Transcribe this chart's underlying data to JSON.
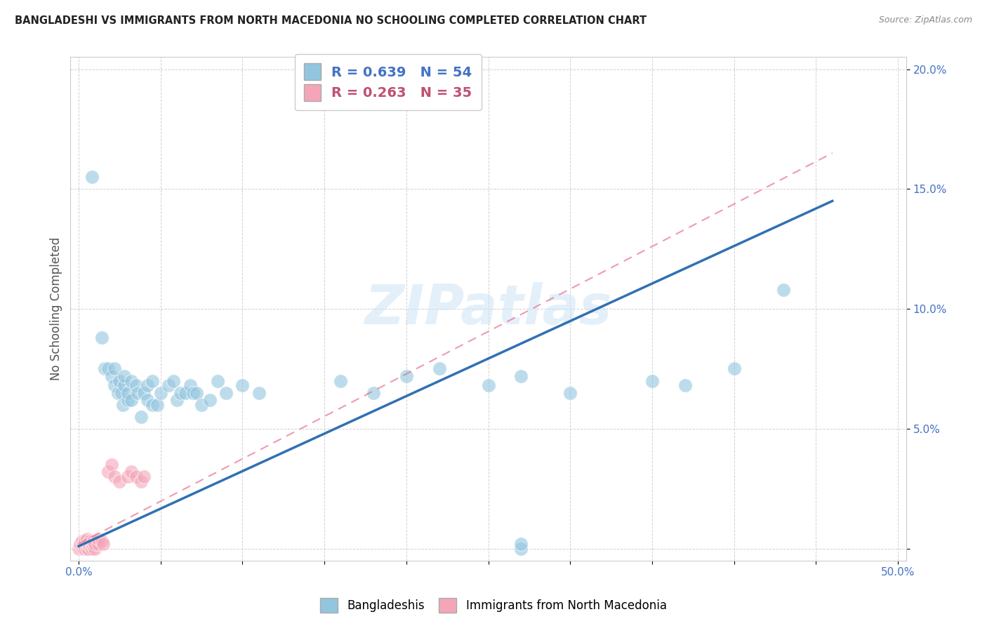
{
  "title": "BANGLADESHI VS IMMIGRANTS FROM NORTH MACEDONIA NO SCHOOLING COMPLETED CORRELATION CHART",
  "source": "Source: ZipAtlas.com",
  "ylabel": "No Schooling Completed",
  "xlim": [
    -0.005,
    0.505
  ],
  "ylim": [
    -0.005,
    0.205
  ],
  "xticks": [
    0.0,
    0.05,
    0.1,
    0.15,
    0.2,
    0.25,
    0.3,
    0.35,
    0.4,
    0.45,
    0.5
  ],
  "yticks": [
    0.0,
    0.05,
    0.1,
    0.15,
    0.2
  ],
  "blue_R": 0.639,
  "blue_N": 54,
  "pink_R": 0.263,
  "pink_N": 35,
  "blue_color": "#92c5de",
  "pink_color": "#f4a6b8",
  "blue_line_color": "#3070b3",
  "pink_line_color": "#e87090",
  "legend_label_blue": "Bangladeshis",
  "legend_label_pink": "Immigrants from North Macedonia",
  "blue_line_x0": 0.0,
  "blue_line_y0": 0.001,
  "blue_line_x1": 0.46,
  "blue_line_y1": 0.145,
  "pink_line_x0": 0.0,
  "pink_line_y0": 0.002,
  "pink_line_x1": 0.46,
  "pink_line_y1": 0.165,
  "blue_scatter": [
    [
      0.008,
      0.155
    ],
    [
      0.014,
      0.088
    ],
    [
      0.016,
      0.075
    ],
    [
      0.018,
      0.075
    ],
    [
      0.02,
      0.072
    ],
    [
      0.022,
      0.068
    ],
    [
      0.022,
      0.075
    ],
    [
      0.024,
      0.065
    ],
    [
      0.025,
      0.07
    ],
    [
      0.026,
      0.065
    ],
    [
      0.027,
      0.06
    ],
    [
      0.028,
      0.068
    ],
    [
      0.028,
      0.072
    ],
    [
      0.03,
      0.062
    ],
    [
      0.03,
      0.065
    ],
    [
      0.032,
      0.07
    ],
    [
      0.032,
      0.062
    ],
    [
      0.035,
      0.068
    ],
    [
      0.036,
      0.065
    ],
    [
      0.038,
      0.055
    ],
    [
      0.04,
      0.065
    ],
    [
      0.042,
      0.068
    ],
    [
      0.042,
      0.062
    ],
    [
      0.045,
      0.06
    ],
    [
      0.045,
      0.07
    ],
    [
      0.048,
      0.06
    ],
    [
      0.05,
      0.065
    ],
    [
      0.055,
      0.068
    ],
    [
      0.058,
      0.07
    ],
    [
      0.06,
      0.062
    ],
    [
      0.062,
      0.065
    ],
    [
      0.065,
      0.065
    ],
    [
      0.068,
      0.068
    ],
    [
      0.07,
      0.065
    ],
    [
      0.072,
      0.065
    ],
    [
      0.075,
      0.06
    ],
    [
      0.08,
      0.062
    ],
    [
      0.085,
      0.07
    ],
    [
      0.09,
      0.065
    ],
    [
      0.1,
      0.068
    ],
    [
      0.11,
      0.065
    ],
    [
      0.16,
      0.07
    ],
    [
      0.18,
      0.065
    ],
    [
      0.2,
      0.072
    ],
    [
      0.22,
      0.075
    ],
    [
      0.25,
      0.068
    ],
    [
      0.27,
      0.072
    ],
    [
      0.3,
      0.065
    ],
    [
      0.35,
      0.07
    ],
    [
      0.37,
      0.068
    ],
    [
      0.4,
      0.075
    ],
    [
      0.27,
      0.0
    ],
    [
      0.27,
      0.002
    ],
    [
      0.43,
      0.108
    ]
  ],
  "pink_scatter": [
    [
      0.0,
      0.0
    ],
    [
      0.001,
      0.0
    ],
    [
      0.001,
      0.002
    ],
    [
      0.002,
      0.0
    ],
    [
      0.002,
      0.003
    ],
    [
      0.003,
      0.0
    ],
    [
      0.003,
      0.002
    ],
    [
      0.004,
      0.0
    ],
    [
      0.004,
      0.003
    ],
    [
      0.005,
      0.0
    ],
    [
      0.005,
      0.002
    ],
    [
      0.005,
      0.004
    ],
    [
      0.006,
      0.0
    ],
    [
      0.006,
      0.002
    ],
    [
      0.007,
      0.001
    ],
    [
      0.007,
      0.003
    ],
    [
      0.008,
      0.0
    ],
    [
      0.008,
      0.002
    ],
    [
      0.009,
      0.001
    ],
    [
      0.009,
      0.003
    ],
    [
      0.01,
      0.0
    ],
    [
      0.01,
      0.002
    ],
    [
      0.012,
      0.002
    ],
    [
      0.012,
      0.004
    ],
    [
      0.014,
      0.003
    ],
    [
      0.015,
      0.002
    ],
    [
      0.018,
      0.032
    ],
    [
      0.02,
      0.035
    ],
    [
      0.022,
      0.03
    ],
    [
      0.025,
      0.028
    ],
    [
      0.03,
      0.03
    ],
    [
      0.032,
      0.032
    ],
    [
      0.035,
      0.03
    ],
    [
      0.038,
      0.028
    ],
    [
      0.04,
      0.03
    ]
  ]
}
